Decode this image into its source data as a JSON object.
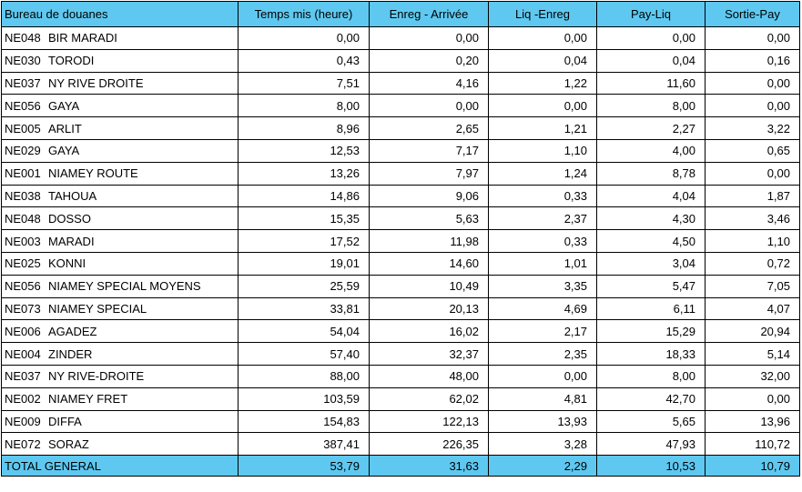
{
  "table": {
    "headers": [
      "Bureau de douanes",
      "Temps mis (heure)",
      "Enreg - Arrivée",
      "Liq -Enreg",
      "Pay-Liq",
      "Sortie-Pay"
    ],
    "rows": [
      {
        "code": "NE048",
        "name": "BIR MARADI",
        "values": [
          "0,00",
          "0,00",
          "0,00",
          "0,00",
          "0,00"
        ]
      },
      {
        "code": "NE030",
        "name": "TORODI",
        "values": [
          "0,43",
          "0,20",
          "0,04",
          "0,04",
          "0,16"
        ]
      },
      {
        "code": "NE037",
        "name": "NY RIVE DROITE",
        "values": [
          "7,51",
          "4,16",
          "1,22",
          "11,60",
          "0,00"
        ]
      },
      {
        "code": "NE056",
        "name": "GAYA",
        "values": [
          "8,00",
          "0,00",
          "0,00",
          "8,00",
          "0,00"
        ]
      },
      {
        "code": "NE005",
        "name": "ARLIT",
        "values": [
          "8,96",
          "2,65",
          "1,21",
          "2,27",
          "3,22"
        ]
      },
      {
        "code": "NE029",
        "name": "GAYA",
        "values": [
          "12,53",
          "7,17",
          "1,10",
          "4,00",
          "0,65"
        ]
      },
      {
        "code": "NE001",
        "name": "NIAMEY ROUTE",
        "values": [
          "13,26",
          "7,97",
          "1,24",
          "8,78",
          "0,00"
        ]
      },
      {
        "code": "NE038",
        "name": "TAHOUA",
        "values": [
          "14,86",
          "9,06",
          "0,33",
          "4,04",
          "1,87"
        ]
      },
      {
        "code": "NE048",
        "name": "DOSSO",
        "values": [
          "15,35",
          "5,63",
          "2,37",
          "4,30",
          "3,46"
        ]
      },
      {
        "code": "NE003",
        "name": "MARADI",
        "values": [
          "17,52",
          "11,98",
          "0,33",
          "4,50",
          "1,10"
        ]
      },
      {
        "code": "NE025",
        "name": "KONNI",
        "values": [
          "19,01",
          "14,60",
          "1,01",
          "3,04",
          "0,72"
        ]
      },
      {
        "code": "NE056",
        "name": "NIAMEY SPECIAL MOYENS",
        "values": [
          "25,59",
          "10,49",
          "3,35",
          "5,47",
          "7,05"
        ]
      },
      {
        "code": "NE073",
        "name": "NIAMEY SPECIAL",
        "values": [
          "33,81",
          "20,13",
          "4,69",
          "6,11",
          "4,07"
        ]
      },
      {
        "code": "NE006",
        "name": "AGADEZ",
        "values": [
          "54,04",
          "16,02",
          "2,17",
          "15,29",
          "20,94"
        ]
      },
      {
        "code": "NE004",
        "name": "ZINDER",
        "values": [
          "57,40",
          "32,37",
          "2,35",
          "18,33",
          "5,14"
        ]
      },
      {
        "code": "NE037",
        "name": "NY RIVE-DROITE",
        "values": [
          "88,00",
          "48,00",
          "0,00",
          "8,00",
          "32,00"
        ]
      },
      {
        "code": "NE002",
        "name": "NIAMEY FRET",
        "values": [
          "103,59",
          "62,02",
          "4,81",
          "42,70",
          "0,00"
        ]
      },
      {
        "code": "NE009",
        "name": "DIFFA",
        "values": [
          "154,83",
          "122,13",
          "13,93",
          "5,65",
          "13,96"
        ]
      },
      {
        "code": "NE072",
        "name": "SORAZ",
        "values": [
          "387,41",
          "226,35",
          "3,28",
          "47,93",
          "110,72"
        ]
      }
    ],
    "total": {
      "label": "TOTAL GENERAL",
      "values": [
        "53,79",
        "31,63",
        "2,29",
        "10,53",
        "10,79"
      ]
    },
    "colors": {
      "header_bg": "#5ec8f0",
      "total_bg": "#5ec8f0",
      "border": "#000000"
    }
  }
}
